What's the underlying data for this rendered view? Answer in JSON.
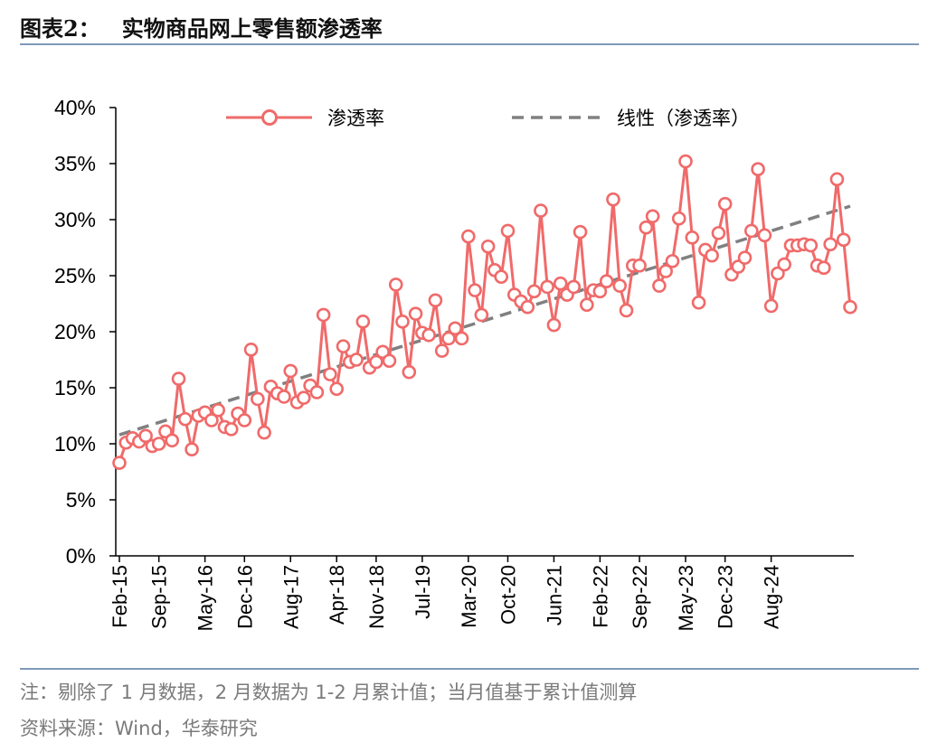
{
  "header": {
    "label": "图表2：",
    "title": "实物商品网上零售额渗透率"
  },
  "footer": {
    "note": "注：剔除了 1 月数据，2 月数据为 1-2 月累计值；当月值基于累计值测算",
    "source": "资料来源：Wind，华泰研究"
  },
  "colors": {
    "series": "#f06a6a",
    "trend": "#808080",
    "axis": "#000000",
    "rule": "#7f9ab8"
  },
  "chart_data": {
    "type": "line",
    "title": "实物商品网上零售额渗透率",
    "xlabel": "",
    "ylabel": "",
    "ylim": [
      0,
      40
    ],
    "yticks": [
      "0%",
      "5%",
      "10%",
      "15%",
      "20%",
      "25%",
      "30%",
      "35%",
      "40%"
    ],
    "x_labels": [
      "Feb-15",
      "Sep-15",
      "May-16",
      "Dec-16",
      "Aug-17",
      "Apr-18",
      "Nov-18",
      "Jul-19",
      "Mar-20",
      "Oct-20",
      "Jun-21",
      "Feb-22",
      "Sep-22",
      "May-23",
      "Dec-23",
      "Aug-24"
    ],
    "x_label_positions": [
      0,
      6,
      13,
      19,
      26,
      33,
      39,
      46,
      53,
      59,
      66,
      73,
      79,
      86,
      92,
      99
    ],
    "legend": [
      "渗透率",
      "线性（渗透率）"
    ],
    "series": [
      {
        "name": "渗透率",
        "values": [
          8.3,
          10.1,
          10.5,
          10.2,
          10.7,
          9.8,
          10.0,
          11.1,
          10.3,
          15.8,
          12.2,
          9.5,
          12.5,
          12.8,
          12.1,
          13.0,
          11.5,
          11.3,
          12.7,
          12.1,
          18.4,
          14.0,
          11.0,
          15.1,
          14.5,
          14.2,
          16.5,
          13.7,
          14.1,
          15.2,
          14.6,
          21.5,
          16.2,
          14.9,
          18.7,
          17.3,
          17.5,
          20.9,
          16.8,
          17.3,
          18.2,
          17.4,
          24.2,
          20.9,
          16.4,
          21.6,
          19.9,
          19.7,
          22.8,
          18.3,
          19.4,
          20.3,
          19.4,
          28.5,
          23.7,
          21.5,
          27.6,
          25.5,
          24.9,
          29.0,
          23.3,
          22.7,
          22.2,
          23.6,
          30.8,
          24.0,
          20.6,
          24.3,
          23.3,
          24.0,
          28.9,
          22.4,
          23.7,
          23.6,
          24.5,
          31.8,
          24.1,
          21.9,
          25.9,
          25.9,
          29.3,
          30.3,
          24.1,
          25.4,
          26.3,
          30.1,
          35.2,
          28.4,
          22.6,
          27.3,
          26.8,
          28.8,
          31.4,
          25.1,
          25.8,
          26.6,
          29.0,
          34.5,
          28.6,
          22.3,
          25.2,
          26.0,
          27.7,
          27.7,
          27.8,
          27.7,
          25.9,
          25.7,
          27.8,
          33.6,
          28.2,
          22.2
        ]
      },
      {
        "name": "线性（渗透率）",
        "type": "trend",
        "start": 10.8,
        "end": 31.2
      }
    ]
  }
}
